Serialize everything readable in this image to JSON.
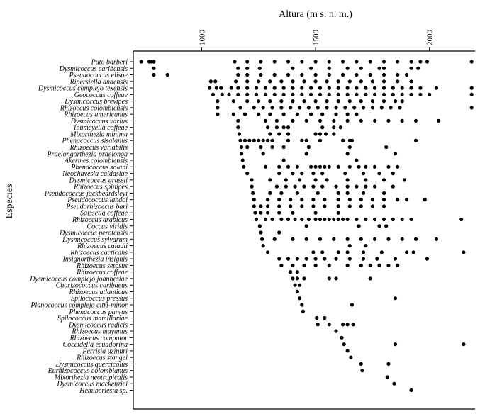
{
  "chart_data": {
    "type": "scatter",
    "xlabel": "Altura (m s. n. m.)",
    "ylabel": "Especies",
    "x_ticks": [
      "1000",
      "1500",
      "2000"
    ],
    "xlim": [
      700,
      2200
    ],
    "legend": "none",
    "grid": false,
    "point_color": "#000000",
    "series": [
      {
        "category": "Puto barberi",
        "label": "Puto barberi",
        "x": [
          735,
          770,
          780,
          790,
          1145,
          1200,
          1260,
          1320,
          1380,
          1440,
          1500,
          1560,
          1620,
          1680,
          1740,
          1800,
          1860,
          1920,
          1960,
          1990,
          2185
        ]
      },
      {
        "category": "Dysmicoccus caribensis",
        "label": "Dysmicoccus caribensis",
        "x": [
          790,
          1160,
          1200,
          1255,
          1400,
          1480,
          1560,
          1640,
          1700,
          1780,
          1800,
          1920,
          1950
        ]
      },
      {
        "category": "Pseudococcus elisae",
        "label": "Pseudococcus elisae",
        "x": [
          790,
          850,
          1160,
          1200,
          1260,
          1320,
          1380,
          1440,
          1500,
          1560,
          1620,
          1680,
          1740,
          1800,
          1860,
          1900
        ]
      },
      {
        "category": "Ripersiella andensis",
        "label": "Ripersiella andensis",
        "x": [
          1040,
          1060,
          1150,
          1200,
          1250,
          1300,
          1350,
          1400,
          1450,
          1500,
          1550,
          1600,
          1650,
          1700,
          1750,
          1800,
          1860,
          1920
        ]
      },
      {
        "category": "Dysmicoccus complejo texensis",
        "label": "Dysmicoccus complejo texensis",
        "x": [
          1035,
          1065,
          1085,
          1130,
          1160,
          1200,
          1240,
          1280,
          1320,
          1360,
          1400,
          1440,
          1480,
          1520,
          1560,
          1600,
          1640,
          1680,
          1720,
          1760,
          1800,
          1840,
          1880,
          1920,
          1960,
          2030,
          2185
        ]
      },
      {
        "category": "Geococcus coffeae",
        "label": "Geococcus coffeae",
        "x": [
          1050,
          1090,
          1120,
          1160,
          1200,
          1240,
          1280,
          1320,
          1360,
          1400,
          1440,
          1480,
          1520,
          1560,
          1600,
          1640,
          1680,
          1720,
          1760,
          1800,
          1840,
          1880,
          1920,
          1960,
          2000,
          2185
        ]
      },
      {
        "category": "Dysmicoccus brevipes",
        "label": "Dysmicoccus brevipes",
        "x": [
          1070,
          1140,
          1200,
          1250,
          1300,
          1350,
          1400,
          1450,
          1500,
          1550,
          1600,
          1650,
          1700,
          1750,
          1800,
          1850,
          1880
        ]
      },
      {
        "category": "Rhizoecus colombiensis",
        "label": "Rhizoecus colombiensis",
        "x": [
          1070,
          1170,
          1230,
          1270,
          1310,
          1350,
          1390,
          1430,
          1470,
          1510,
          1550,
          1590,
          1630,
          1670,
          1710,
          1750,
          1790,
          1830,
          1870,
          2185
        ]
      },
      {
        "category": "Rhizoecus americanus",
        "label": "Rhizoecus americanus",
        "x": [
          1070,
          1140,
          1190,
          1250,
          1300,
          1360,
          1420,
          1480,
          1530,
          1590,
          1640,
          1680
        ]
      },
      {
        "category": "Dysmicoccus varius",
        "label": "Dysmicoccus varius",
        "x": [
          1160,
          1280,
          1330,
          1400,
          1460,
          1520,
          1580,
          1640,
          1700,
          1760,
          1820,
          1880,
          1940,
          2040
        ]
      },
      {
        "category": "Toumeyella coffeae",
        "label": "Toumeyella coffeae",
        "x": [
          1160,
          1290,
          1330,
          1360,
          1380,
          1530,
          1580,
          1610
        ]
      },
      {
        "category": "Mixorthezia minima",
        "label": "Mixorthezia minima",
        "x": [
          1165,
          1300,
          1340,
          1380,
          1500,
          1520,
          1545,
          1580
        ]
      },
      {
        "category": "Phenacoccus sisalanus",
        "label": "Phenacoccus sisalanus",
        "x": [
          1170,
          1190,
          1210,
          1230,
          1250,
          1270,
          1290,
          1310,
          1380,
          1440,
          1460,
          1520,
          1620,
          1650,
          1660,
          1940
        ]
      },
      {
        "category": "Rhizoecus variabilis",
        "label": "Rhizoecus variabilis",
        "x": [
          1175,
          1200,
          1260,
          1310,
          1360,
          1470,
          1650,
          1810
        ]
      },
      {
        "category": "Praelongorthezia praelonga",
        "label": "Praelongorthezia praelonga",
        "x": [
          1175,
          1270,
          1460,
          1640,
          1850
        ]
      },
      {
        "category": "Akermes colombiensis",
        "label": "Akermes colombiensis",
        "x": [
          1180,
          1360,
          1680
        ]
      },
      {
        "category": "Phenacoccus solani",
        "label": "Phenacoccus solani",
        "x": [
          1185,
          1280,
          1340,
          1380,
          1420,
          1480,
          1500,
          1520,
          1540,
          1560,
          1600,
          1650,
          1690,
          1720,
          1760,
          1820,
          1860
        ]
      },
      {
        "category": "Neochavesia caldasiae",
        "label": "Neochavesia caldasiae",
        "x": [
          1200,
          1340,
          1400,
          1440,
          1490,
          1530,
          1630,
          1710,
          1780,
          1840
        ]
      },
      {
        "category": "Dysmicoccus grassii",
        "label": "Dysmicoccus grassii",
        "x": [
          1220,
          1300,
          1370,
          1430,
          1500,
          1550,
          1640,
          1720,
          1800,
          1890
        ]
      },
      {
        "category": "Rhizoecus spinipes",
        "label": "Rhizoecus spinipes",
        "x": [
          1220,
          1330,
          1370,
          1410,
          1450,
          1490,
          1530,
          1590,
          1640,
          1680,
          1720,
          1760,
          1840
        ]
      },
      {
        "category": "Pseudococcus jackbeardsleyi",
        "label": "Pseudococcus jackbeardsleyi",
        "x": [
          1225,
          1300,
          1350,
          1420,
          1510,
          1600,
          1640,
          1710,
          1800
        ]
      },
      {
        "category": "Pseudococcus landoi",
        "label": "Pseudococcus landoi",
        "x": [
          1230,
          1290,
          1340,
          1390,
          1440,
          1490,
          1540,
          1600,
          1650,
          1700,
          1750,
          1800,
          1860,
          1900,
          1980
        ]
      },
      {
        "category": "Pseudorhizoecus bari",
        "label": "Pseudorhizoecus bari",
        "x": [
          1230,
          1260,
          1290,
          1340,
          1390,
          1440,
          1490,
          1540,
          1600,
          1650,
          1700,
          1750,
          1800
        ]
      },
      {
        "category": "Saissetia coffeae",
        "label": "Saissetia coffeae",
        "x": [
          1235,
          1260,
          1290,
          1340,
          1400,
          1500,
          1600
        ]
      },
      {
        "category": "Rhizoecus arabicus",
        "label": "Rhizoecus arabicus",
        "x": [
          1240,
          1280,
          1310,
          1350,
          1380,
          1410,
          1440,
          1470,
          1500,
          1520,
          1540,
          1560,
          1580,
          1600,
          1620,
          1640,
          1680,
          1720,
          1760,
          1800,
          1840,
          1880,
          1920,
          2140
        ]
      },
      {
        "category": "Coccus viridis",
        "label": "Coccus viridis",
        "x": [
          1255,
          1460,
          1690,
          1780,
          1810
        ]
      },
      {
        "category": "Dysmicoccus perotensis",
        "label": "Dysmicoccus perotensis",
        "x": [
          1260,
          1340
        ]
      },
      {
        "category": "Dysmicoccus sylvarum",
        "label": "Dysmicoccus sylvarum",
        "x": [
          1265,
          1320,
          1400,
          1460,
          1520,
          1580,
          1640,
          1700,
          1760,
          1820,
          1880,
          1940,
          2030
        ]
      },
      {
        "category": "Rhizoecus caladii",
        "label": "Rhizoecus caladii",
        "x": [
          1270,
          1650,
          1720
        ]
      },
      {
        "category": "Rhizoecus cacticans",
        "label": "Rhizoecus cacticans",
        "x": [
          1290,
          1490,
          1530,
          1600,
          1640,
          1710,
          1790,
          1900,
          1930,
          2150
        ]
      },
      {
        "category": "Insignorthezia insignis",
        "label": "Insignorthezia insignis",
        "x": [
          1340,
          1380,
          1420,
          1460,
          1500,
          1540,
          1590,
          1650,
          1710,
          1770,
          1850,
          1990
        ]
      },
      {
        "category": "Rhizoecus setosus",
        "label": "Rhizoecus setosus",
        "x": [
          1350,
          1400,
          1450,
          1500,
          1560,
          1640,
          1700,
          1740,
          1780,
          1820,
          1860
        ]
      },
      {
        "category": "Rhizoecus coffeae",
        "label": "Rhizoecus coffeae",
        "x": [
          1390,
          1420
        ]
      },
      {
        "category": "Dysmicoccus complejo joannesiae",
        "label": "Dysmicoccus complejo joannesiae",
        "x": [
          1400,
          1420,
          1450,
          1560,
          1590,
          1740
        ]
      },
      {
        "category": "Chorizococcus caribaeus",
        "label": "Chorizococcus caribaeus",
        "x": [
          1410,
          1430
        ]
      },
      {
        "category": "Rhizoecus atlanticus",
        "label": "Rhizoecus atlanticus",
        "x": [
          1420
        ]
      },
      {
        "category": "Spilococcus pressus",
        "label": "Spilococcus pressus",
        "x": [
          1430,
          1850
        ]
      },
      {
        "category": "Planococcus complejo citri-minor",
        "label": "Planococcus complejo citri-minor",
        "x": [
          1440,
          1660
        ]
      },
      {
        "category": "Phenacoccus parvus",
        "label": "Phenacoccus parvus",
        "x": [
          1445
        ]
      },
      {
        "category": "Spilococcus mamillariae",
        "label": "Spilococcus mamillariae",
        "x": [
          1505,
          1540
        ]
      },
      {
        "category": "Dysmicoccus radicis",
        "label": "Dysmicoccus radicis",
        "x": [
          1510,
          1560,
          1620,
          1640,
          1665
        ]
      },
      {
        "category": "Rhizoecus mayanus",
        "label": "Rhizoecus mayanus",
        "x": [
          1590
        ]
      },
      {
        "category": "Rhizoecus compotor",
        "label": "Rhizoecus compotor",
        "x": [
          1615
        ]
      },
      {
        "category": "Coccidella ecuadorina",
        "label": "Coccidella ecuadorina",
        "x": [
          1625,
          1850,
          2150
        ]
      },
      {
        "category": "Ferrisia uzinuri",
        "label": "Ferrisia uzinuri",
        "x": [
          1640
        ]
      },
      {
        "category": "Rhizoecus stangei",
        "label": "Rhizoecus stangei",
        "x": [
          1655
        ]
      },
      {
        "category": "Dysmicoccus quercicolus",
        "label": "Dysmicoccus quercicolus",
        "x": [
          1700,
          1820
        ]
      },
      {
        "category": "Eurhizococcus colombianus",
        "label": "Eurhizococcus colombianus",
        "x": [
          1705
        ]
      },
      {
        "category": "Mixorthezia neotropicalis",
        "label": "Mixorthezia neotropicalis",
        "x": [
          1815
        ]
      },
      {
        "category": "Dysmicoccus mackenziei",
        "label": "Dysmicoccus mackenziei",
        "x": [
          1845
        ]
      },
      {
        "category": "Hemiberlesia sp.",
        "label": "Hemiberlesia sp.",
        "x": [
          1920
        ]
      }
    ]
  }
}
